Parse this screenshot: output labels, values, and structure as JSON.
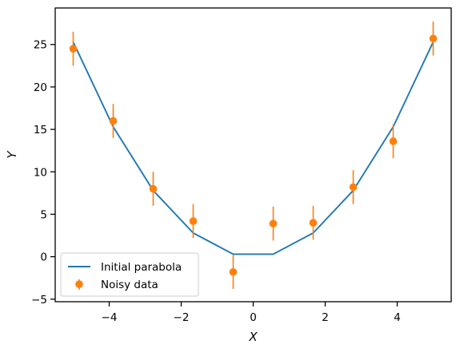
{
  "chart_data": {
    "type": "line",
    "title": "",
    "xlabel": "X",
    "ylabel": "Y",
    "xlim": [
      -5.5,
      5.5
    ],
    "ylim": [
      -5.3,
      29.3
    ],
    "xticks": [
      -4,
      -2,
      0,
      2,
      4
    ],
    "yticks": [
      -5,
      0,
      5,
      10,
      15,
      20,
      25
    ],
    "xtick_labels": [
      "−4",
      "−2",
      "0",
      "2",
      "4"
    ],
    "ytick_labels": [
      "−5",
      "0",
      "5",
      "10",
      "15",
      "20",
      "25"
    ],
    "grid": false,
    "legend_position": "lower-left",
    "series": [
      {
        "name": "Initial parabola",
        "kind": "line",
        "color": "#1f77b4",
        "x": [
          -5.0,
          -3.889,
          -2.778,
          -1.667,
          -0.556,
          0.556,
          1.667,
          2.778,
          3.889,
          5.0
        ],
        "y": [
          25.3,
          15.3,
          7.8,
          2.8,
          0.3,
          0.3,
          2.8,
          7.8,
          15.3,
          25.3
        ]
      },
      {
        "name": "Noisy data",
        "kind": "errorbar",
        "color": "#ff7f0e",
        "x": [
          -5.0,
          -3.889,
          -2.778,
          -1.667,
          -0.556,
          0.556,
          1.667,
          2.778,
          3.889,
          5.0
        ],
        "y": [
          24.5,
          16.0,
          8.0,
          4.2,
          -1.8,
          3.9,
          4.0,
          8.2,
          13.6,
          25.7
        ],
        "yerr": [
          2.0,
          2.0,
          2.0,
          2.0,
          2.0,
          2.0,
          2.0,
          2.0,
          2.0,
          2.0
        ]
      }
    ]
  }
}
